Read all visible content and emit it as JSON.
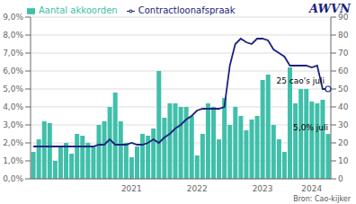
{
  "chart_data": {
    "type": "bar",
    "categories": [
      null,
      null,
      null,
      null,
      null,
      null,
      null,
      null,
      null,
      null,
      null,
      null,
      null,
      null,
      null,
      null,
      null,
      null,
      "2021",
      null,
      null,
      null,
      null,
      null,
      null,
      null,
      null,
      null,
      null,
      null,
      "2022",
      null,
      null,
      null,
      null,
      null,
      null,
      null,
      null,
      null,
      null,
      null,
      "2023",
      null,
      null,
      null,
      null,
      null,
      null,
      null,
      null,
      "2024",
      null,
      null,
      null
    ],
    "series": [
      {
        "name": "Aantal akkoorden",
        "type": "bar",
        "color": "#40bfaa",
        "axis": "y2",
        "values": [
          15,
          22,
          32,
          31,
          10,
          18,
          20,
          14,
          25,
          24,
          20,
          18,
          30,
          32,
          40,
          48,
          32,
          20,
          12,
          18,
          25,
          24,
          28,
          60,
          34,
          42,
          42,
          40,
          40,
          35,
          13,
          25,
          42,
          40,
          22,
          45,
          30,
          40,
          35,
          27,
          33,
          35,
          55,
          58,
          30,
          22,
          15,
          62,
          42,
          50,
          50,
          43,
          42,
          44,
          25
        ]
      },
      {
        "name": "Contractloonafspraak",
        "type": "line",
        "color": "#1a237e",
        "values": [
          0.018,
          0.018,
          0.018,
          0.018,
          0.018,
          0.018,
          0.018,
          0.018,
          0.018,
          0.018,
          0.018,
          0.018,
          0.019,
          0.019,
          0.022,
          0.019,
          0.019,
          0.019,
          0.02,
          0.019,
          0.019,
          0.02,
          0.022,
          0.02,
          0.023,
          0.025,
          0.028,
          0.03,
          0.033,
          0.035,
          0.038,
          0.039,
          0.039,
          0.039,
          0.039,
          0.04,
          0.063,
          0.075,
          0.078,
          0.076,
          0.075,
          0.078,
          0.078,
          0.077,
          0.072,
          0.07,
          0.068,
          0.063,
          0.063,
          0.063,
          0.063,
          0.062,
          0.063,
          0.05,
          0.05
        ]
      }
    ],
    "ylim": [
      0.0,
      0.09
    ],
    "yticks": [
      {
        "value": 0.0,
        "label": "0,0%"
      },
      {
        "value": 0.01,
        "label": "1,0%"
      },
      {
        "value": 0.02,
        "label": "2,0%"
      },
      {
        "value": 0.03,
        "label": "3,0%"
      },
      {
        "value": 0.04,
        "label": "4,0%"
      },
      {
        "value": 0.05,
        "label": "5,0%"
      },
      {
        "value": 0.06,
        "label": "6,0%"
      },
      {
        "value": 0.07,
        "label": "7,0%"
      },
      {
        "value": 0.08,
        "label": "8,0%"
      },
      {
        "value": 0.09,
        "label": "9,0%"
      }
    ],
    "y2lim": [
      0,
      90
    ],
    "y2ticks": [
      0,
      10,
      20,
      30,
      40,
      50,
      60,
      70,
      80,
      90
    ],
    "grid": true,
    "legend": "upper left",
    "annotations": [
      "5,0% juli",
      "25 cao's juli",
      "AWVN",
      "Bron: Cao-kijker"
    ]
  }
}
